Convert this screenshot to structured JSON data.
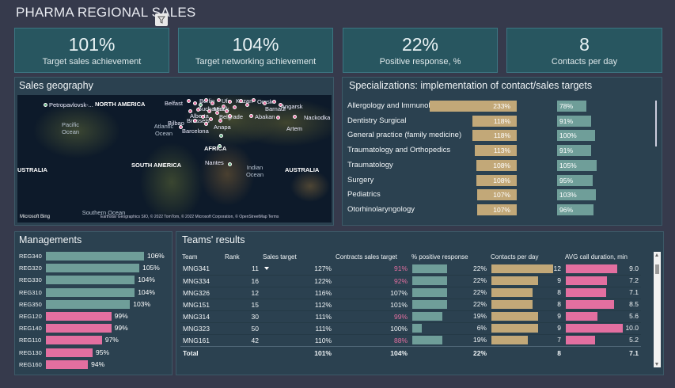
{
  "header": {
    "title": "PHARMA REGIONAL SALES"
  },
  "kpis": [
    {
      "value": "101%",
      "label": "Target sales achievement"
    },
    {
      "value": "104%",
      "label": "Target networking achievement"
    },
    {
      "value": "22%",
      "label": "Positive response, %"
    },
    {
      "value": "8",
      "label": "Contacts per day"
    }
  ],
  "geo": {
    "title": "Sales geography",
    "labels": [
      "Petropavlovsk-...",
      "NORTH AMERICA",
      "Belfast",
      "Berlin",
      "Bucharest",
      "Ufa",
      "Kazan",
      "Minsk",
      "Omsk",
      "Barnaul",
      "Angarsk",
      "Nackodka",
      "Alberta",
      "Brussels",
      "Belgrade",
      "Abakan",
      "Artem",
      "Bilbao",
      "Barcelona",
      "Anapa",
      "AFRICA",
      "SOUTH AMERICA",
      "Nantes",
      "AUSTRALIA",
      "USTRALIA"
    ],
    "oceans": [
      "Pacific Ocean",
      "Atlantic Ocean",
      "Indian Ocean",
      "Southern Ocean"
    ],
    "bing": "Microsoft Bing",
    "credit": "Earthstar Geographics SIO, © 2022 TomTom, © 2022 Microsoft Corporation, © OpenStreetMap  Terms"
  },
  "spec": {
    "title": "Specializations: implementation of contact/sales targets",
    "rows": [
      {
        "name": "Allergology and Immunology",
        "sales": "233%",
        "contacts": "78%",
        "s": 233,
        "c": 78
      },
      {
        "name": "Dentistry Surgical",
        "sales": "118%",
        "contacts": "91%",
        "s": 118,
        "c": 91
      },
      {
        "name": "General practice (family medicine)",
        "sales": "118%",
        "contacts": "100%",
        "s": 118,
        "c": 100
      },
      {
        "name": "Traumatology and Orthopedics",
        "sales": "113%",
        "contacts": "91%",
        "s": 113,
        "c": 91
      },
      {
        "name": "Traumatology",
        "sales": "108%",
        "contacts": "105%",
        "s": 108,
        "c": 105
      },
      {
        "name": "Surgery",
        "sales": "108%",
        "contacts": "95%",
        "s": 108,
        "c": 95
      },
      {
        "name": "Pediatrics",
        "sales": "107%",
        "contacts": "103%",
        "s": 107,
        "c": 103
      },
      {
        "name": "Otorhinolaryngology",
        "sales": "107%",
        "contacts": "96%",
        "s": 107,
        "c": 96
      }
    ]
  },
  "managements": {
    "title": "Managements",
    "rows": [
      {
        "code": "REG340",
        "pct": "106%",
        "v": 106
      },
      {
        "code": "REG320",
        "pct": "105%",
        "v": 105
      },
      {
        "code": "REG330",
        "pct": "104%",
        "v": 104
      },
      {
        "code": "REG310",
        "pct": "104%",
        "v": 104
      },
      {
        "code": "REG350",
        "pct": "103%",
        "v": 103
      },
      {
        "code": "REG120",
        "pct": "99%",
        "v": 99
      },
      {
        "code": "REG140",
        "pct": "99%",
        "v": 99
      },
      {
        "code": "REG110",
        "pct": "97%",
        "v": 97
      },
      {
        "code": "REG130",
        "pct": "95%",
        "v": 95
      },
      {
        "code": "REG160",
        "pct": "94%",
        "v": 94
      }
    ]
  },
  "teams": {
    "title": "Teams' results",
    "columns": [
      "Team",
      "Rank",
      "Sales target",
      "Contracts sales target",
      "% positive response",
      "Contacts per day",
      "AVG call duration, min"
    ],
    "rows": [
      {
        "team": "MNG341",
        "rank": "11",
        "sales": "127%",
        "contracts": "91%",
        "pos": "22%",
        "posv": 22,
        "cpd": "12",
        "cpdv": 12,
        "avg": "9.0",
        "avgv": 9.0
      },
      {
        "team": "MNG334",
        "rank": "16",
        "sales": "122%",
        "contracts": "92%",
        "pos": "22%",
        "posv": 22,
        "cpd": "9",
        "cpdv": 9,
        "avg": "7.2",
        "avgv": 7.2
      },
      {
        "team": "MNG326",
        "rank": "12",
        "sales": "116%",
        "contracts": "107%",
        "pos": "22%",
        "posv": 22,
        "cpd": "8",
        "cpdv": 8,
        "avg": "7.1",
        "avgv": 7.1
      },
      {
        "team": "MNG151",
        "rank": "15",
        "sales": "112%",
        "contracts": "101%",
        "pos": "22%",
        "posv": 22,
        "cpd": "8",
        "cpdv": 8,
        "avg": "8.5",
        "avgv": 8.5
      },
      {
        "team": "MNG314",
        "rank": "30",
        "sales": "111%",
        "contracts": "99%",
        "pos": "19%",
        "posv": 19,
        "cpd": "9",
        "cpdv": 9,
        "avg": "5.6",
        "avgv": 5.6
      },
      {
        "team": "MNG323",
        "rank": "50",
        "sales": "111%",
        "contracts": "100%",
        "pos": "6%",
        "posv": 6,
        "cpd": "9",
        "cpdv": 9,
        "avg": "10.0",
        "avgv": 10.0
      },
      {
        "team": "MNG161",
        "rank": "42",
        "sales": "110%",
        "contracts": "88%",
        "pos": "19%",
        "posv": 19,
        "cpd": "7",
        "cpdv": 7,
        "avg": "5.2",
        "avgv": 5.2
      }
    ],
    "total": {
      "label": "Total",
      "sales": "101%",
      "contracts": "104%",
      "pos": "22%",
      "cpd": "8",
      "avg": "7.1"
    }
  },
  "colors": {
    "kpi_bg": "#285660",
    "tan": "#c2a878",
    "teal": "#6f9e99",
    "pink": "#e36fa0",
    "page": "#363a4c"
  }
}
